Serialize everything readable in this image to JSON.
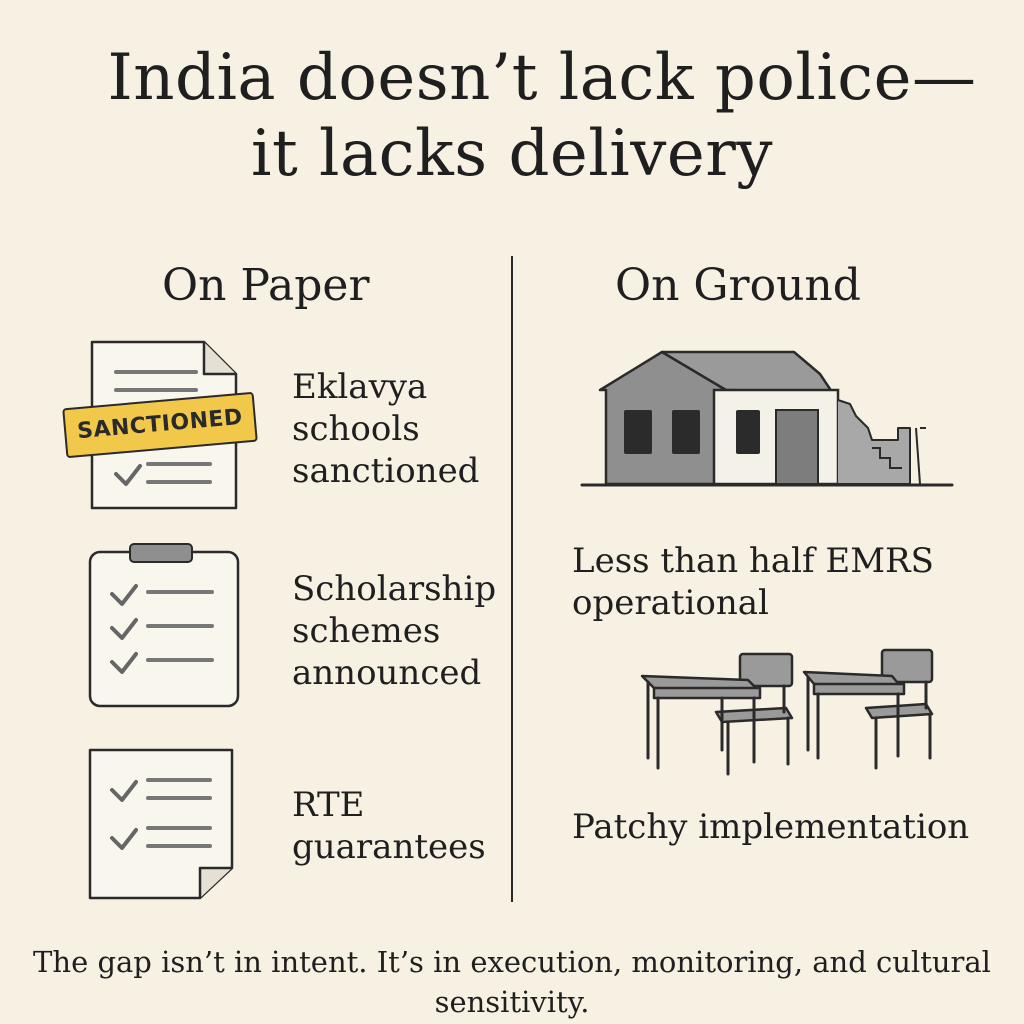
{
  "title": {
    "line1": "India doesn’t lack police—",
    "line2": "it lacks delivery"
  },
  "left": {
    "heading": "On Paper",
    "items": [
      {
        "label": "Eklavya\nschools\nsanctioned",
        "icon": "document-icon",
        "stamp": "SANCTIONED"
      },
      {
        "label": "Scholarship\nschemes\nannounced",
        "icon": "clipboard-checklist-icon"
      },
      {
        "label": "RTE\nguarantees",
        "icon": "checklist-document-icon"
      }
    ]
  },
  "right": {
    "heading": "On Ground",
    "items": [
      {
        "label": "Less than half EMRS\noperational",
        "icon": "dilapidated-school-icon"
      },
      {
        "label": "Patchy implementation",
        "icon": "school-desks-icon"
      }
    ]
  },
  "footer": "The gap isn’t in intent. It’s in execution, monitoring, and cultural sensitivity.",
  "colors": {
    "background": "#f6f1e3",
    "text": "#1f1f1f",
    "stamp": "#f2c84b",
    "building_gray": "#8f8f8f",
    "window_dark": "#2b2b2b"
  }
}
